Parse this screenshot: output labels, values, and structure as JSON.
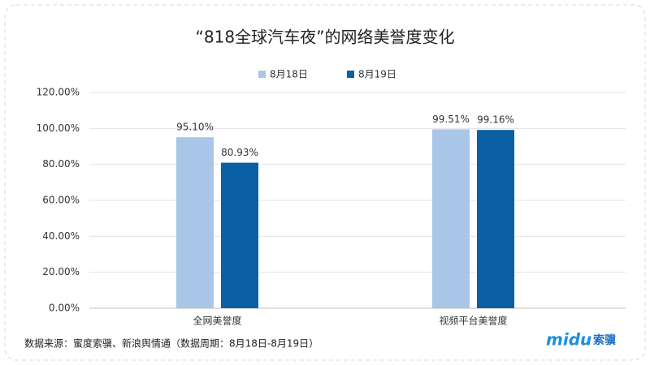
{
  "chart_data": {
    "type": "bar",
    "title": "“818全球汽车夜”的网络美誉度变化",
    "categories": [
      "全网美誉度",
      "视频平台美誉度"
    ],
    "series": [
      {
        "name": "8月18日",
        "color": "#a9c6e8",
        "values": [
          95.1,
          99.51
        ],
        "value_labels": [
          "95.10%",
          "99.51%"
        ]
      },
      {
        "name": "8月19日",
        "color": "#0b5fa5",
        "values": [
          80.93,
          99.16
        ],
        "value_labels": [
          "80.93%",
          "99.16%"
        ]
      }
    ],
    "ylim": [
      0,
      120
    ],
    "yticks": [
      {
        "value": 0,
        "label": "0.00%"
      },
      {
        "value": 20,
        "label": "20.00%"
      },
      {
        "value": 40,
        "label": "40.00%"
      },
      {
        "value": 60,
        "label": "60.00%"
      },
      {
        "value": 80,
        "label": "80.00%"
      },
      {
        "value": 100,
        "label": "100.00%"
      },
      {
        "value": 120,
        "label": "120.00%"
      }
    ],
    "grid": true,
    "legend": "top"
  },
  "footer": {
    "source": "数据来源：蜜度索骥、新浪舆情通（数据周期：8月18日-8月19日）"
  },
  "logo": {
    "brand": "midu",
    "name": "索骥"
  }
}
